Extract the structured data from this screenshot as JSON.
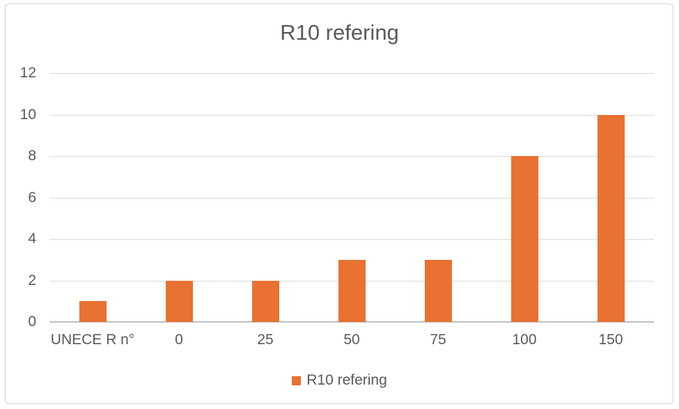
{
  "chart": {
    "title": "R10 refering",
    "legend": {
      "label": "R10 refering"
    }
  },
  "chart_data": {
    "type": "bar",
    "title": "R10 refering",
    "categories": [
      "UNECE R n°",
      "0",
      "25",
      "50",
      "75",
      "100",
      "150"
    ],
    "series": [
      {
        "name": "R10 refering",
        "values": [
          1,
          2,
          2,
          3,
          3,
          8,
          10
        ]
      }
    ],
    "xlabel": "",
    "ylabel": "",
    "ylim": [
      0,
      12
    ],
    "yticks": [
      0,
      2,
      4,
      6,
      8,
      10,
      12
    ],
    "grid": true,
    "legend_position": "bottom",
    "colors": {
      "bar": "#E97132",
      "text": "#595959",
      "gridline": "#D9D9D9",
      "axis_line": "#BFBFBF",
      "border": "#D2D2D2"
    }
  }
}
